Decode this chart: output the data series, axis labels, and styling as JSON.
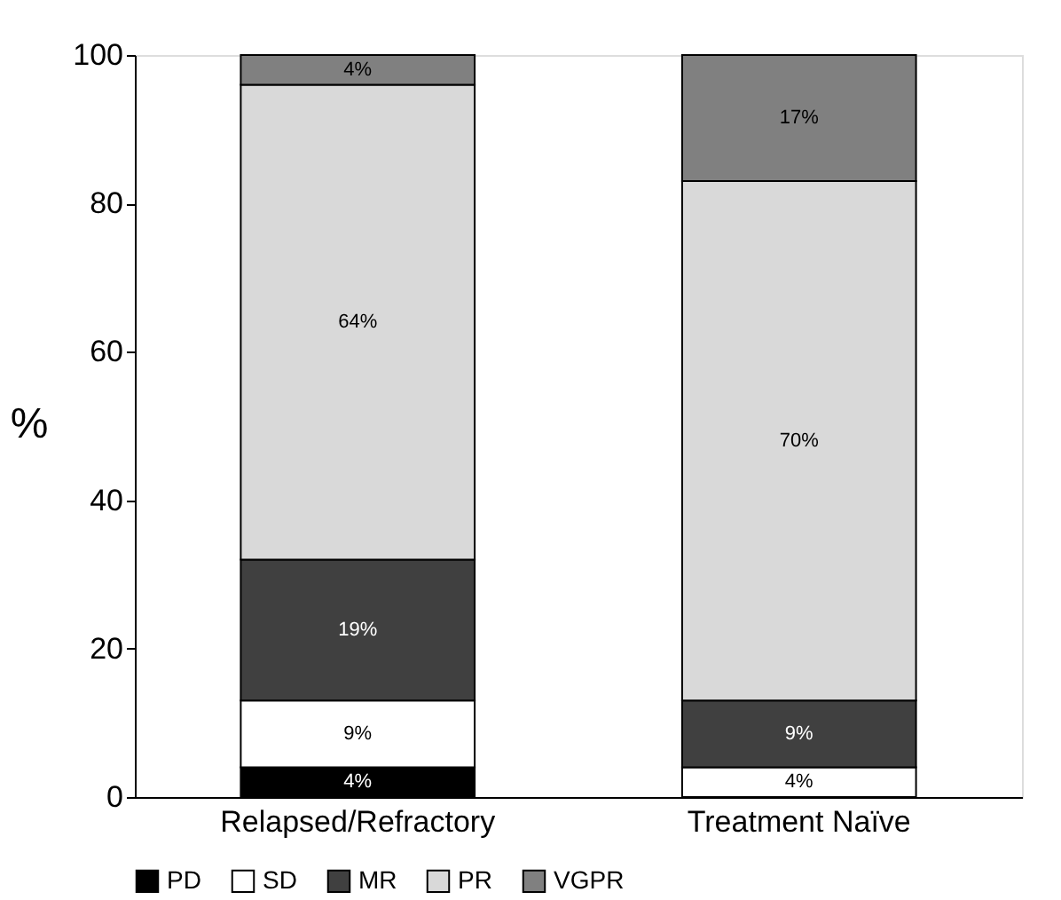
{
  "chart_data": {
    "type": "bar",
    "stacked": true,
    "ylabel": "%",
    "categories": [
      "Relapsed/Refractory",
      "Treatment Naïve"
    ],
    "series": [
      {
        "name": "PD",
        "color": "#000000",
        "values": [
          4,
          null
        ],
        "value_labels": [
          "4%",
          null
        ]
      },
      {
        "name": "SD",
        "color": "#ffffff",
        "values": [
          9,
          4
        ],
        "value_labels": [
          "9%",
          "4%"
        ]
      },
      {
        "name": "MR",
        "color": "#404040",
        "values": [
          19,
          9
        ],
        "value_labels": [
          "19%",
          "9%"
        ]
      },
      {
        "name": "PR",
        "color": "#d9d9d9",
        "values": [
          64,
          70
        ],
        "value_labels": [
          "64%",
          "70%"
        ]
      },
      {
        "name": "VGPR",
        "color": "#808080",
        "values": [
          4,
          17
        ],
        "value_labels": [
          "4%",
          "17%"
        ]
      }
    ],
    "ylim": [
      0,
      100
    ],
    "yticks": [
      0,
      20,
      40,
      60,
      80,
      100
    ],
    "grid": false,
    "legend": "bottom"
  }
}
